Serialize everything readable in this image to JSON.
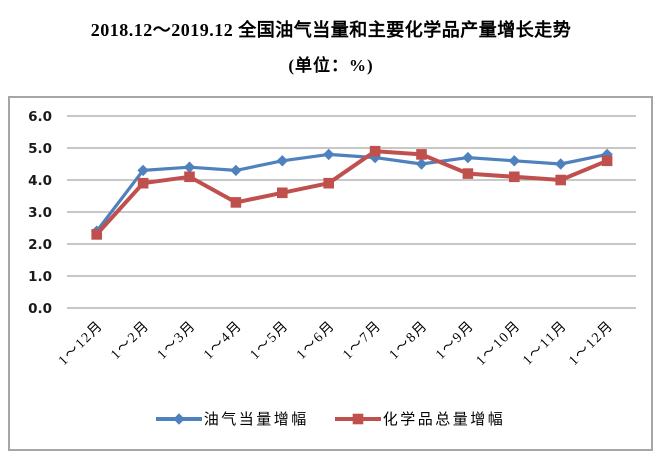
{
  "chart_data": {
    "type": "line",
    "title": "2018.12～2019.12 全国油气当量和主要化学品产量增长走势",
    "subtitle": "(单位：%)",
    "categories": [
      "1～12月",
      "1～2月",
      "1～3月",
      "1～4月",
      "1～5月",
      "1～6月",
      "1～7月",
      "1～8月",
      "1～9月",
      "1～10月",
      "1～11月",
      "1～12月"
    ],
    "series": [
      {
        "name": "油气当量增幅",
        "color": "#4F81BD",
        "marker": "diamond",
        "values": [
          2.4,
          4.3,
          4.4,
          4.3,
          4.6,
          4.8,
          4.7,
          4.5,
          4.7,
          4.6,
          4.5,
          4.8
        ]
      },
      {
        "name": "化学品总量增幅",
        "color": "#C0504D",
        "marker": "square",
        "values": [
          2.3,
          3.9,
          4.1,
          3.3,
          3.6,
          3.9,
          4.9,
          4.8,
          4.2,
          4.1,
          4.0,
          4.6
        ]
      }
    ],
    "ylim": [
      0,
      6
    ],
    "yticks": [
      0,
      1,
      2,
      3,
      4,
      5,
      6
    ],
    "ytick_labels": [
      "0.0",
      "1.0",
      "2.0",
      "3.0",
      "4.0",
      "5.0",
      "6.0"
    ],
    "grid": "horizontal",
    "gridline_color": "#A6A6A6",
    "axis_text_color": "#000000",
    "legend_position": "bottom"
  }
}
